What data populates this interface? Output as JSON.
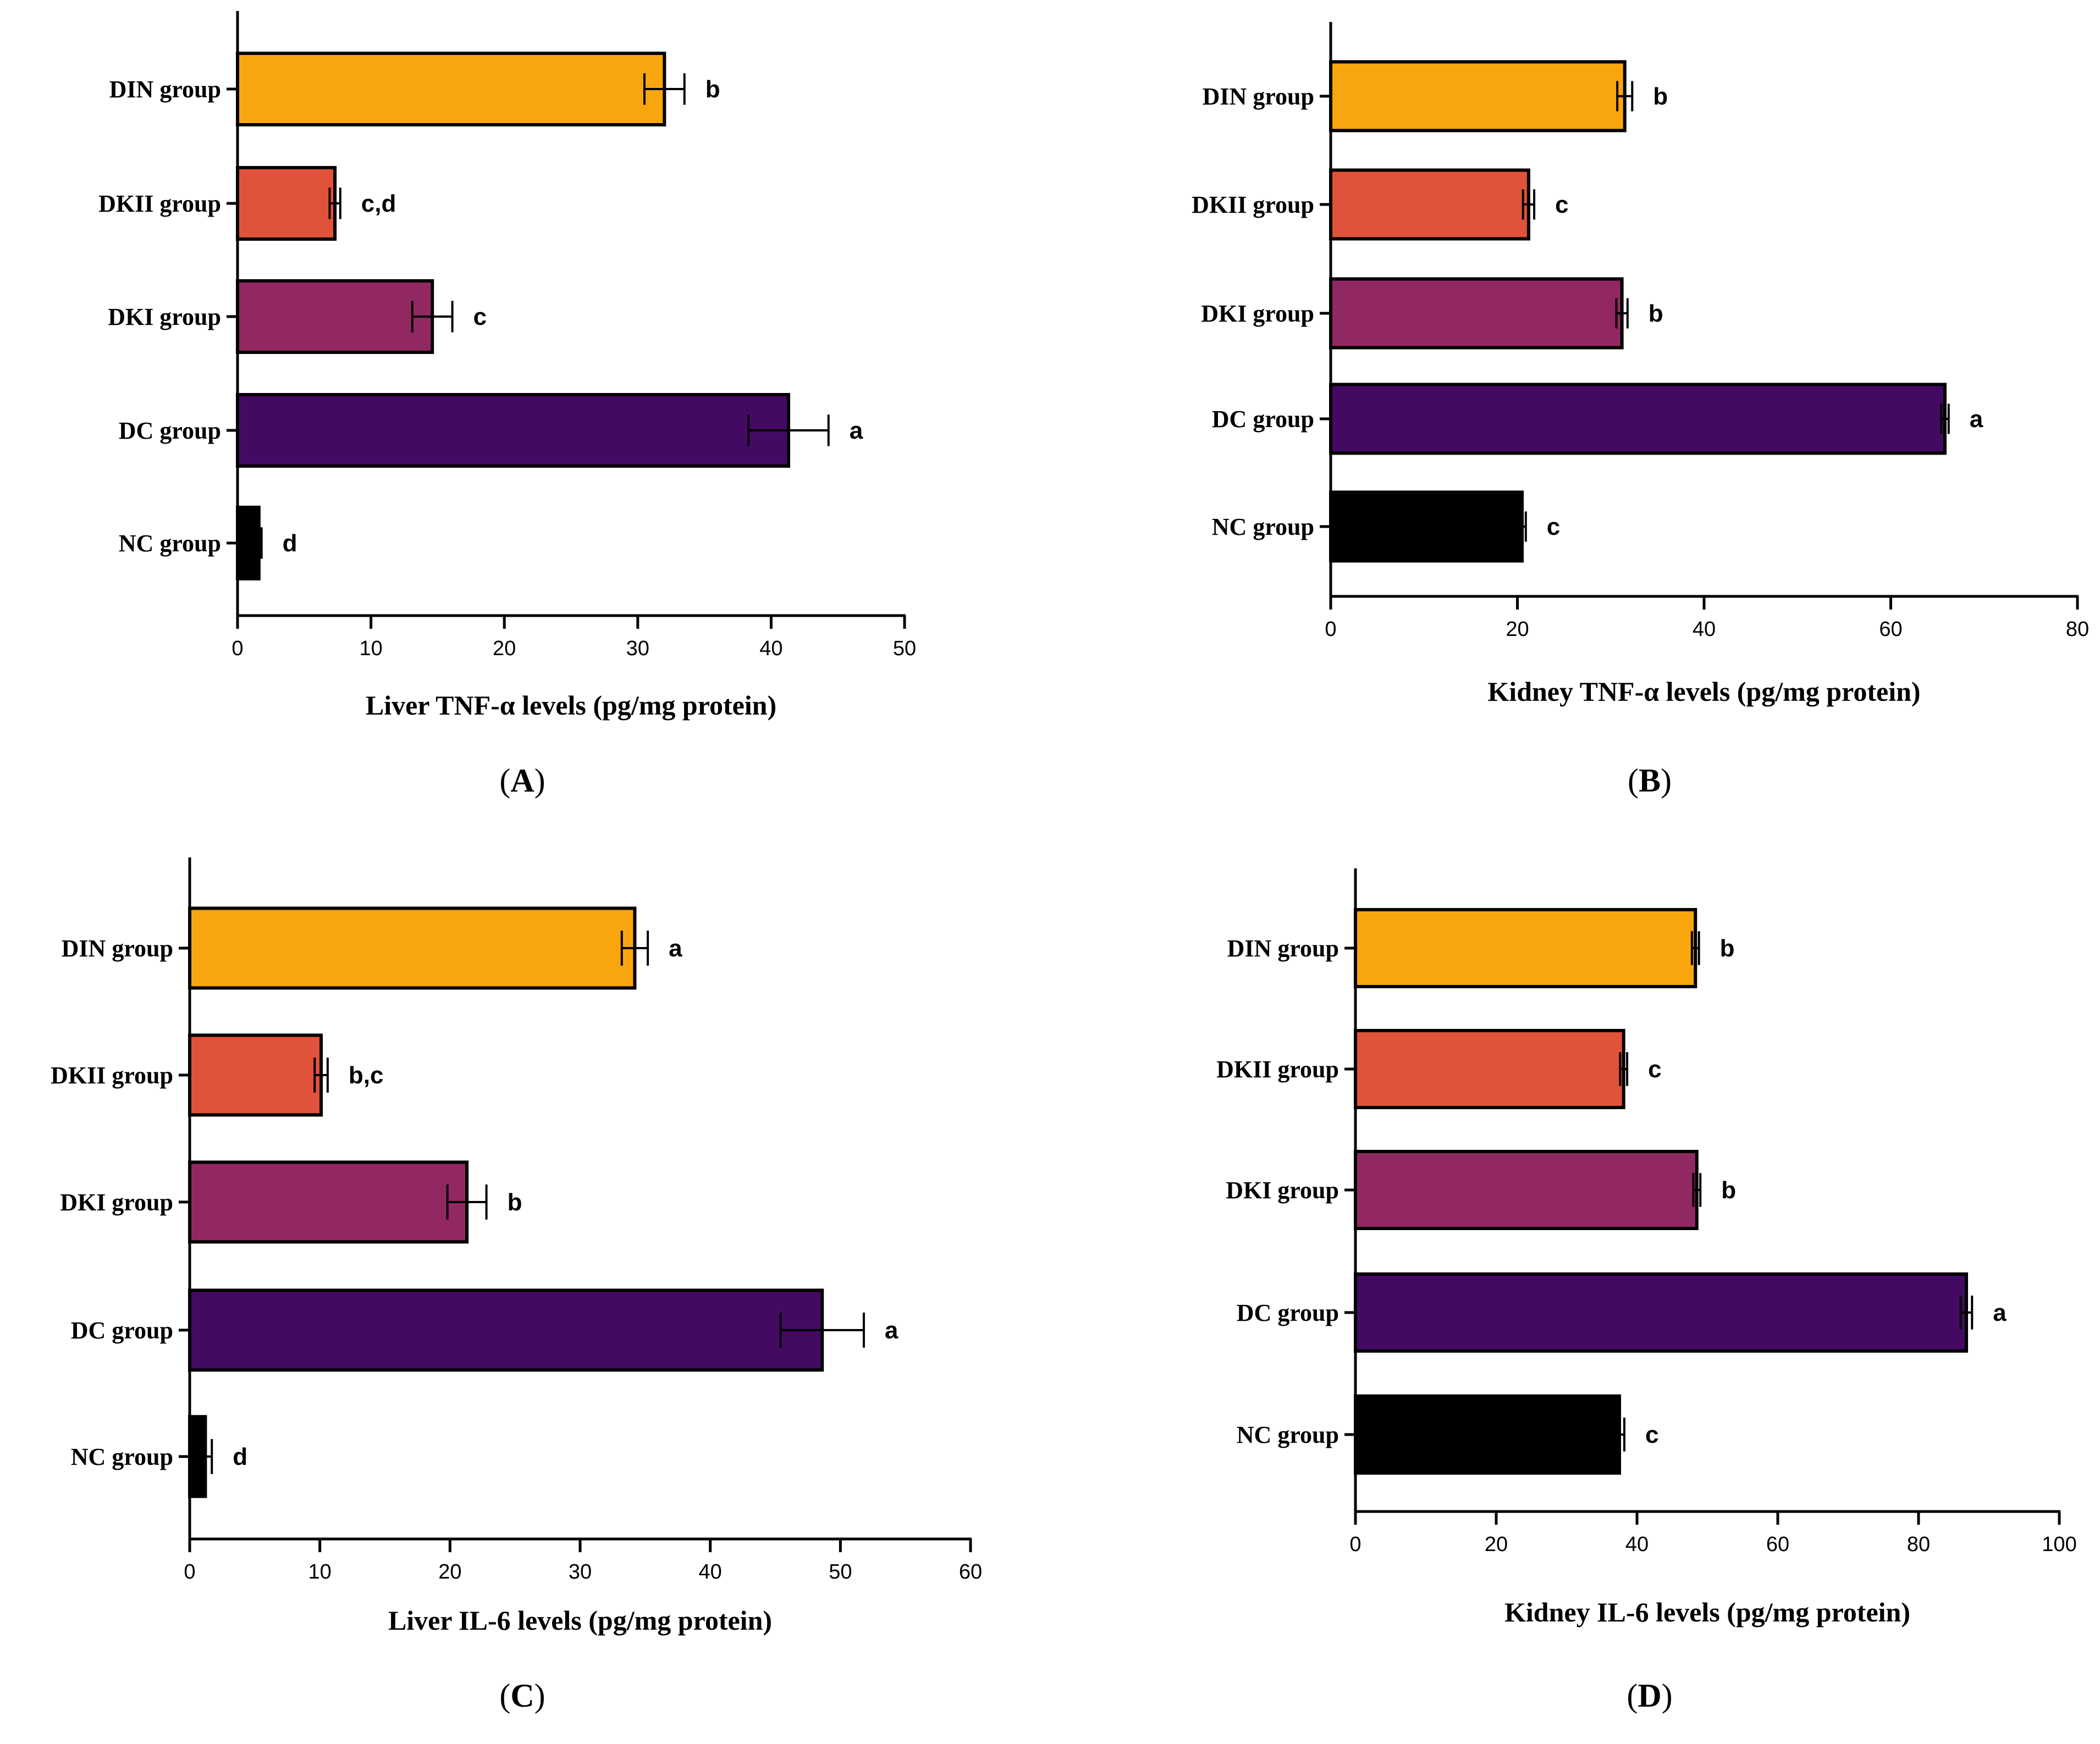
{
  "chart_data": [
    {
      "panel": "A",
      "type": "bar",
      "orientation": "horizontal",
      "xlabel": "Liver TNF-α levels (pg/mg protein)",
      "xlim": [
        0,
        50
      ],
      "ticks": [
        0,
        10,
        20,
        30,
        40,
        50
      ],
      "categories": [
        "DIN group",
        "DKII group",
        "DKI group",
        "DC group",
        "NC group"
      ],
      "values": [
        32,
        7.3,
        14.6,
        41.3,
        1.6
      ],
      "errors": [
        1.5,
        0.4,
        1.5,
        3.0,
        0.2
      ],
      "significance": [
        "b",
        "c,d",
        "c",
        "a",
        "d"
      ],
      "colors": [
        "#f9a60e",
        "#e0533a",
        "#922862",
        "#440a63",
        "#000000"
      ]
    },
    {
      "panel": "B",
      "type": "bar",
      "orientation": "horizontal",
      "xlabel": "Kidney TNF-α levels (pg/mg protein)",
      "xlim": [
        0,
        80
      ],
      "ticks": [
        0,
        20,
        40,
        60,
        80
      ],
      "categories": [
        "DIN group",
        "DKII group",
        "DKI group",
        "DC group",
        "NC group"
      ],
      "values": [
        31.5,
        21.2,
        31.2,
        65.8,
        20.5
      ],
      "errors": [
        0.8,
        0.6,
        0.6,
        0.4,
        0.4
      ],
      "significance": [
        "b",
        "c",
        "b",
        "a",
        "c"
      ],
      "colors": [
        "#f9a60e",
        "#e0533a",
        "#922862",
        "#440a63",
        "#000000"
      ]
    },
    {
      "panel": "C",
      "type": "bar",
      "orientation": "horizontal",
      "xlabel": "Liver IL-6 levels (pg/mg protein)",
      "xlim": [
        0,
        60
      ],
      "ticks": [
        0,
        10,
        20,
        30,
        40,
        50,
        60
      ],
      "categories": [
        "DIN group",
        "DKII group",
        "DKI group",
        "DC group",
        "NC group"
      ],
      "values": [
        34.2,
        10.1,
        21.3,
        48.6,
        1.2
      ],
      "errors": [
        1.0,
        0.5,
        1.5,
        3.2,
        0.5
      ],
      "significance": [
        "a",
        "b,c",
        "b",
        "a",
        "d"
      ],
      "colors": [
        "#f9a60e",
        "#e0533a",
        "#922862",
        "#440a63",
        "#000000"
      ]
    },
    {
      "panel": "D",
      "type": "bar",
      "orientation": "horizontal",
      "xlabel": "Kidney IL-6 levels (pg/mg protein)",
      "xlim": [
        0,
        100
      ],
      "ticks": [
        0,
        20,
        40,
        60,
        80,
        100
      ],
      "categories": [
        "DIN group",
        "DKII group",
        "DKI group",
        "DC group",
        "NC group"
      ],
      "values": [
        48.3,
        38.1,
        48.5,
        86.8,
        37.5
      ],
      "errors": [
        0.5,
        0.5,
        0.5,
        0.8,
        0.7
      ],
      "significance": [
        "b",
        "c",
        "b",
        "a",
        "c"
      ],
      "colors": [
        "#f9a60e",
        "#e0533a",
        "#922862",
        "#440a63",
        "#000000"
      ]
    }
  ]
}
